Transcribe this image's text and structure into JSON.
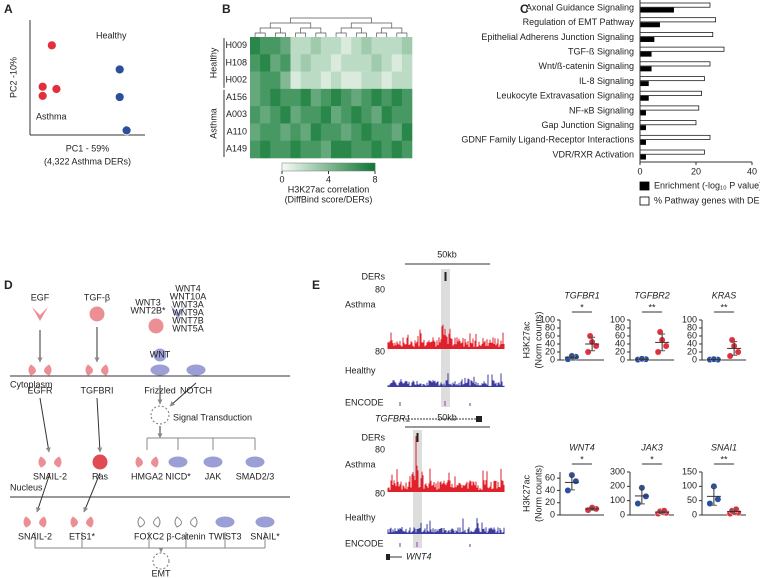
{
  "panels": [
    "A",
    "B",
    "C",
    "D",
    "E"
  ],
  "chart_data": [
    {
      "type": "scatter",
      "xlabel": "PC1 - 59%",
      "note": "(4,322 Asthma DERs)",
      "ylabel": "PC2 -10%",
      "xlim": [
        0,
        10
      ],
      "ylim": [
        0,
        10
      ],
      "series": [
        {
          "name": "Asthma",
          "color": "#e0303c",
          "x": [
            1.9,
            1.1,
            2.3,
            1.1
          ],
          "y": [
            7.8,
            4.2,
            4.0,
            3.4
          ]
        },
        {
          "name": "Healthy",
          "color": "#2b4f9c",
          "x": [
            7.8,
            7.8,
            8.4
          ],
          "y": [
            5.7,
            3.3,
            0.4
          ]
        }
      ]
    },
    {
      "type": "heatmap",
      "row_groups": [
        {
          "name": "Healthy",
          "color": "#2a3a9e",
          "rows": [
            "H009",
            "H108",
            "H002"
          ]
        },
        {
          "name": "Asthma",
          "color": "#d42a3a",
          "rows": [
            "A156",
            "A003",
            "A110",
            "A149"
          ]
        }
      ],
      "values": [
        [
          7,
          6,
          6,
          5,
          2,
          2,
          3,
          2,
          2,
          1,
          2,
          3,
          2,
          2,
          2,
          3
        ],
        [
          6,
          7,
          5,
          6,
          2,
          3,
          2,
          2,
          1,
          2,
          2,
          2,
          3,
          2,
          1,
          2
        ],
        [
          5,
          6,
          6,
          4,
          1,
          2,
          2,
          1,
          2,
          1,
          1,
          2,
          2,
          1,
          2,
          2
        ],
        [
          5,
          6,
          7,
          6,
          6,
          7,
          5,
          6,
          7,
          6,
          5,
          6,
          7,
          6,
          7,
          6
        ],
        [
          6,
          5,
          6,
          7,
          5,
          6,
          6,
          7,
          5,
          6,
          7,
          6,
          5,
          7,
          6,
          6
        ],
        [
          5,
          6,
          6,
          5,
          6,
          5,
          7,
          6,
          6,
          5,
          6,
          7,
          6,
          6,
          5,
          7
        ],
        [
          6,
          7,
          6,
          6,
          7,
          6,
          6,
          5,
          7,
          7,
          6,
          6,
          7,
          6,
          7,
          6
        ]
      ],
      "clim": [
        0,
        8
      ],
      "cticks": [
        0,
        4,
        8
      ],
      "colorbar_label": "H3K27ac correlation",
      "colorbar_note": "(DiffBind score/DERs)"
    },
    {
      "type": "bar",
      "orientation": "horizontal",
      "categories": [
        "Axonal Guidance Signaling",
        "Regulation of EMT Pathway",
        "Epithelial Adherens Junction Signaling",
        "TGF-ß Signaling",
        "Wnt/ß-catenin Signaling",
        "IL-8 Signaling",
        "Leukocyte Extravasation Signaling",
        "NF-κB Signaling",
        "Gap Junction Signaling",
        "GDNF Family Ligand-Receptor Interactions",
        "VDR/RXR Activation"
      ],
      "series": [
        {
          "name": "% Pathway genes with DERs",
          "color": "#ffffff",
          "values": [
            25,
            27,
            26,
            30,
            25,
            23,
            22,
            21,
            20,
            25,
            23
          ]
        },
        {
          "name": "Enrichment (-log₁₀ P value)",
          "color": "#000000",
          "values": [
            12,
            7,
            5,
            4,
            4,
            3,
            3,
            2,
            2,
            2,
            2
          ]
        }
      ],
      "xlim": [
        0,
        40
      ],
      "xticks": [
        0,
        20,
        40
      ]
    },
    {
      "type": "dot",
      "title": "TGFBR1",
      "ylabel": "H3K27ac",
      "ylabel_note": "(Norm counts)",
      "ylim": [
        0,
        100
      ],
      "yticks": [
        0,
        20,
        40,
        60,
        80,
        100
      ],
      "significance": "*",
      "groups": [
        {
          "color": "#2b4f9c",
          "values": [
            2,
            8,
            10
          ],
          "mean": 7,
          "sd": 4
        },
        {
          "color": "#e0303c",
          "values": [
            20,
            35,
            45,
            60
          ],
          "mean": 40,
          "sd": 17
        }
      ]
    },
    {
      "type": "dot",
      "title": "TGFBR2",
      "ylim": [
        0,
        100
      ],
      "yticks": [
        0,
        20,
        40,
        60,
        80,
        100
      ],
      "significance": "**",
      "groups": [
        {
          "color": "#2b4f9c",
          "values": [
            1,
            2,
            3
          ],
          "mean": 2,
          "sd": 1
        },
        {
          "color": "#e0303c",
          "values": [
            20,
            35,
            50,
            70
          ],
          "mean": 44,
          "sd": 21
        }
      ]
    },
    {
      "type": "dot",
      "title": "KRAS",
      "ylim": [
        0,
        100
      ],
      "yticks": [
        0,
        20,
        40,
        60,
        80,
        100
      ],
      "significance": "**",
      "groups": [
        {
          "color": "#2b4f9c",
          "values": [
            1,
            1,
            2
          ],
          "mean": 1,
          "sd": 0.5
        },
        {
          "color": "#e0303c",
          "values": [
            10,
            20,
            35,
            50
          ],
          "mean": 29,
          "sd": 17
        }
      ]
    },
    {
      "type": "dot",
      "title": "WNT4",
      "ylabel": "H3K27ac",
      "ylabel_note": "(Norm counts)",
      "ylim": [
        0,
        70
      ],
      "yticks": [
        0,
        20,
        40,
        60
      ],
      "significance": "*",
      "groups": [
        {
          "color": "#2b4f9c",
          "values": [
            40,
            55,
            65
          ],
          "mean": 53,
          "sd": 12
        },
        {
          "color": "#e0303c",
          "values": [
            8,
            10,
            12
          ],
          "mean": 10,
          "sd": 2
        }
      ]
    },
    {
      "type": "dot",
      "title": "JAK3",
      "ylim": [
        0,
        300
      ],
      "yticks": [
        0,
        100,
        200,
        300
      ],
      "significance": "*",
      "groups": [
        {
          "color": "#2b4f9c",
          "values": [
            80,
            130,
            190
          ],
          "mean": 133,
          "sd": 55
        },
        {
          "color": "#e0303c",
          "values": [
            10,
            15,
            20,
            25,
            30
          ],
          "mean": 20,
          "sd": 8
        }
      ]
    },
    {
      "type": "dot",
      "title": "SNAI1",
      "ylim": [
        0,
        150
      ],
      "yticks": [
        0,
        50,
        100,
        150
      ],
      "significance": "**",
      "groups": [
        {
          "color": "#2b4f9c",
          "values": [
            40,
            55,
            100
          ],
          "mean": 65,
          "sd": 31
        },
        {
          "color": "#e0303c",
          "values": [
            5,
            8,
            10,
            15,
            20
          ],
          "mean": 12,
          "sd": 6
        }
      ]
    }
  ],
  "diagram": {
    "compartments": [
      "Cytoplasm",
      "Nucleus"
    ],
    "annotation": "Signal Transduction",
    "nodes": [
      {
        "label": "EGF"
      },
      {
        "label": "TGF-β"
      },
      {
        "label": "WNT3"
      },
      {
        "label": "WNT2B*"
      },
      {
        "label": "WNT4"
      },
      {
        "label": "WNT10A"
      },
      {
        "label": "WNT3A"
      },
      {
        "label": "WNT9A"
      },
      {
        "label": "WNT7B"
      },
      {
        "label": "WNT5A"
      },
      {
        "label": "WNT"
      },
      {
        "label": "EGFR"
      },
      {
        "label": "TGFBRI"
      },
      {
        "label": "Frizzled"
      },
      {
        "label": "NOTCH"
      },
      {
        "label": "SNAIL-2"
      },
      {
        "label": "Ras"
      },
      {
        "label": "HMGA2"
      },
      {
        "label": "NICD*"
      },
      {
        "label": "JAK"
      },
      {
        "label": "SMAD2/3"
      },
      {
        "label": "SNAIL-2"
      },
      {
        "label": "ETS1*"
      },
      {
        "label": "FOXC2"
      },
      {
        "label": "β-Catenin"
      },
      {
        "label": "TWIST3"
      },
      {
        "label": "SNAIL*"
      },
      {
        "label": "EMT"
      }
    ]
  },
  "tracks": [
    {
      "scale": "50kb",
      "rows": [
        "DERs",
        "Asthma",
        "Healthy",
        "ENCODE"
      ],
      "track_max": [
        80,
        80
      ],
      "gene": "TGFBR1"
    },
    {
      "scale": "50kb",
      "rows": [
        "DERs",
        "Asthma",
        "Healthy",
        "ENCODE"
      ],
      "track_max": [
        80,
        80
      ],
      "gene": "WNT4"
    }
  ]
}
